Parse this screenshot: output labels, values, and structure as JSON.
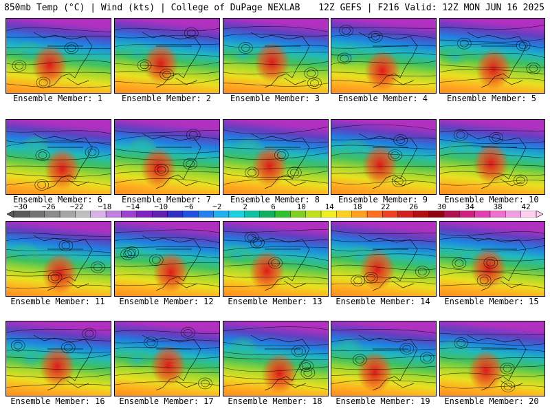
{
  "header": {
    "left": "850mb Temp (°C) | Wind (kts) | College of DuPage NEXLAB",
    "right": "12Z GEFS | F216 Valid: 12Z MON JUN 16 2025"
  },
  "panels": [
    {
      "label": "Ensemble Member: 1"
    },
    {
      "label": "Ensemble Member: 2"
    },
    {
      "label": "Ensemble Member: 3"
    },
    {
      "label": "Ensemble Member: 4"
    },
    {
      "label": "Ensemble Member: 5"
    },
    {
      "label": "Ensemble Member: 6"
    },
    {
      "label": "Ensemble Member: 7"
    },
    {
      "label": "Ensemble Member: 8"
    },
    {
      "label": "Ensemble Member: 9"
    },
    {
      "label": "Ensemble Member: 10"
    },
    {
      "label": "Ensemble Member: 11"
    },
    {
      "label": "Ensemble Member: 12"
    },
    {
      "label": "Ensemble Member: 13"
    },
    {
      "label": "Ensemble Member: 14"
    },
    {
      "label": "Ensemble Member: 15"
    },
    {
      "label": "Ensemble Member: 16"
    },
    {
      "label": "Ensemble Member: 17"
    },
    {
      "label": "Ensemble Member: 18"
    },
    {
      "label": "Ensemble Member: 19"
    },
    {
      "label": "Ensemble Member: 20"
    }
  ],
  "colorbar": {
    "tick_labels": [
      "−30",
      "−26",
      "−22",
      "−18",
      "−14",
      "−10",
      "−6",
      "−2",
      "2",
      "6",
      "10",
      "14",
      "18",
      "22",
      "26",
      "30",
      "34",
      "38",
      "42"
    ],
    "colors": [
      "#5a5a5a",
      "#737373",
      "#8c8c8c",
      "#a6a6a6",
      "#bfbfbf",
      "#d9b3e6",
      "#c080e0",
      "#a040d0",
      "#8020c0",
      "#6020b0",
      "#3030c0",
      "#2050e0",
      "#2080f0",
      "#20b0f0",
      "#20d0e0",
      "#10c0a0",
      "#10b060",
      "#30c030",
      "#80d020",
      "#c0e020",
      "#f0f020",
      "#ffd020",
      "#ffa020",
      "#ff7020",
      "#f04020",
      "#d02020",
      "#b01010",
      "#900010",
      "#b01050",
      "#d02080",
      "#e040b0",
      "#f070d0",
      "#f0a0e0",
      "#ffd0f0"
    ]
  },
  "map_palette": {
    "ocean_gradient": [
      "#ff8a1e",
      "#ffb020",
      "#e8e020",
      "#a0d830",
      "#40c060",
      "#20b8c0",
      "#2080e0",
      "#6040c0",
      "#b030c0"
    ],
    "hot_core": [
      "#e01818",
      "#f05020"
    ],
    "contour": "#000000"
  }
}
